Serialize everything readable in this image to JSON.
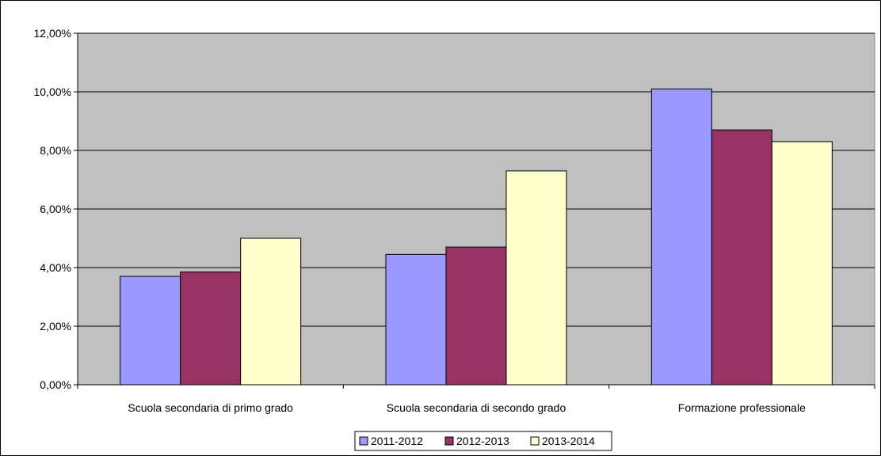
{
  "chart_data": {
    "type": "bar",
    "title": "",
    "xlabel": "",
    "ylabel": "",
    "categories": [
      "Scuola secondaria di primo grado",
      "Scuola secondaria di secondo grado",
      "Formazione professionale"
    ],
    "series": [
      {
        "name": "2011-2012",
        "color": "#9999ff",
        "values": [
          0.037,
          0.0445,
          0.101
        ]
      },
      {
        "name": "2012-2013",
        "color": "#993366",
        "values": [
          0.0385,
          0.047,
          0.087
        ]
      },
      {
        "name": "2013-2014",
        "color": "#ffffcc",
        "values": [
          0.05,
          0.073,
          0.083
        ]
      }
    ],
    "ylim": [
      0,
      0.12
    ],
    "yticks": [
      0,
      0.02,
      0.04,
      0.06,
      0.08,
      0.1,
      0.12
    ],
    "ytick_labels": [
      "0,00%",
      "2,00%",
      "4,00%",
      "6,00%",
      "8,00%",
      "10,00%",
      "12,00%"
    ],
    "grid": true,
    "plot_background": "#c0c0c0",
    "legend_position": "bottom"
  }
}
